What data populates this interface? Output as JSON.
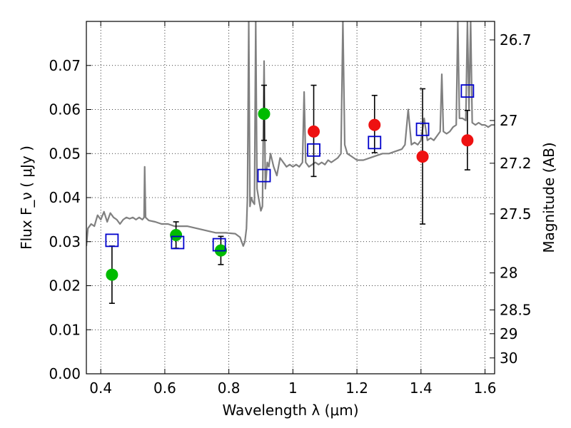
{
  "chart_data": {
    "type": "scatter",
    "xlabel": "Wavelength  λ (μm)",
    "ylabel": "Flux  F_ν  ( μJy )",
    "ylabel_right": "Magnitude (AB)",
    "xlim": [
      0.355,
      1.63
    ],
    "ylim": [
      0.0,
      0.08
    ],
    "grid": true,
    "x_ticks": [
      0.4,
      0.6,
      0.8,
      1.0,
      1.2,
      1.4,
      1.6
    ],
    "x_tick_labels": [
      "0.4",
      "0.6",
      "0.8",
      "1",
      "1.2",
      "1.4",
      "1.6"
    ],
    "y_ticks": [
      0.0,
      0.01,
      0.02,
      0.03,
      0.04,
      0.05,
      0.06,
      0.07
    ],
    "y_tick_labels": [
      "0.00",
      "0.01",
      "0.02",
      "0.03",
      "0.04",
      "0.05",
      "0.06",
      "0.07"
    ],
    "right_ticks": [
      {
        "mag": "26.7",
        "flux": 0.0758
      },
      {
        "mag": "27",
        "flux": 0.0575
      },
      {
        "mag": "27.2",
        "flux": 0.0478
      },
      {
        "mag": "27.5",
        "flux": 0.0363
      },
      {
        "mag": "28",
        "flux": 0.0229
      },
      {
        "mag": "28.5",
        "flux": 0.0145
      },
      {
        "mag": "29",
        "flux": 0.0091
      },
      {
        "mag": "30",
        "flux": 0.0036
      }
    ],
    "colors": {
      "green": "#00bb00",
      "red": "#ee1111",
      "model": "#0000cc",
      "spectrum": "#808080"
    },
    "series": [
      {
        "marker": "circle",
        "color": "green",
        "points": [
          {
            "x": 0.435,
            "y": 0.0225,
            "lo": 0.016,
            "hi": 0.029
          },
          {
            "x": 0.635,
            "y": 0.0315,
            "lo": 0.0285,
            "hi": 0.0345
          },
          {
            "x": 0.775,
            "y": 0.028,
            "lo": 0.0248,
            "hi": 0.0312
          },
          {
            "x": 0.91,
            "y": 0.059,
            "lo": 0.053,
            "hi": 0.0655
          }
        ]
      },
      {
        "marker": "circle",
        "color": "red",
        "points": [
          {
            "x": 1.065,
            "y": 0.055,
            "lo": 0.0448,
            "hi": 0.0655
          },
          {
            "x": 1.255,
            "y": 0.0565,
            "lo": 0.0502,
            "hi": 0.0632
          },
          {
            "x": 1.405,
            "y": 0.0493,
            "lo": 0.034,
            "hi": 0.0647
          },
          {
            "x": 1.545,
            "y": 0.053,
            "lo": 0.0463,
            "hi": 0.0598
          }
        ]
      },
      {
        "marker": "square",
        "color": "model",
        "points": [
          {
            "x": 0.435,
            "y": 0.0303
          },
          {
            "x": 0.64,
            "y": 0.0298
          },
          {
            "x": 0.77,
            "y": 0.0293
          },
          {
            "x": 0.91,
            "y": 0.045
          },
          {
            "x": 1.065,
            "y": 0.0508
          },
          {
            "x": 1.255,
            "y": 0.0525
          },
          {
            "x": 1.405,
            "y": 0.0555
          },
          {
            "x": 1.545,
            "y": 0.0642
          }
        ]
      }
    ],
    "spectrum": [
      [
        0.355,
        0.029
      ],
      [
        0.36,
        0.033
      ],
      [
        0.37,
        0.034
      ],
      [
        0.38,
        0.0335
      ],
      [
        0.39,
        0.036
      ],
      [
        0.4,
        0.035
      ],
      [
        0.41,
        0.0368
      ],
      [
        0.42,
        0.0345
      ],
      [
        0.43,
        0.0365
      ],
      [
        0.44,
        0.0355
      ],
      [
        0.45,
        0.035
      ],
      [
        0.46,
        0.034
      ],
      [
        0.47,
        0.035
      ],
      [
        0.48,
        0.0355
      ],
      [
        0.49,
        0.0352
      ],
      [
        0.5,
        0.0355
      ],
      [
        0.51,
        0.035
      ],
      [
        0.52,
        0.0355
      ],
      [
        0.53,
        0.035
      ],
      [
        0.535,
        0.0355
      ],
      [
        0.537,
        0.047
      ],
      [
        0.54,
        0.0355
      ],
      [
        0.55,
        0.0348
      ],
      [
        0.57,
        0.0345
      ],
      [
        0.59,
        0.034
      ],
      [
        0.61,
        0.034
      ],
      [
        0.63,
        0.0335
      ],
      [
        0.65,
        0.0335
      ],
      [
        0.67,
        0.0335
      ],
      [
        0.7,
        0.033
      ],
      [
        0.73,
        0.0325
      ],
      [
        0.76,
        0.032
      ],
      [
        0.79,
        0.032
      ],
      [
        0.82,
        0.0318
      ],
      [
        0.835,
        0.031
      ],
      [
        0.845,
        0.029
      ],
      [
        0.85,
        0.03
      ],
      [
        0.855,
        0.033
      ],
      [
        0.858,
        0.04
      ],
      [
        0.862,
        0.08
      ],
      [
        0.866,
        0.038
      ],
      [
        0.87,
        0.04
      ],
      [
        0.875,
        0.039
      ],
      [
        0.88,
        0.0385
      ],
      [
        0.884,
        0.08
      ],
      [
        0.888,
        0.042
      ],
      [
        0.895,
        0.039
      ],
      [
        0.9,
        0.037
      ],
      [
        0.905,
        0.038
      ],
      [
        0.91,
        0.071
      ],
      [
        0.914,
        0.042
      ],
      [
        0.92,
        0.048
      ],
      [
        0.925,
        0.047
      ],
      [
        0.93,
        0.05
      ],
      [
        0.94,
        0.047
      ],
      [
        0.95,
        0.045
      ],
      [
        0.96,
        0.049
      ],
      [
        0.97,
        0.048
      ],
      [
        0.98,
        0.047
      ],
      [
        0.99,
        0.0475
      ],
      [
        1.0,
        0.047
      ],
      [
        1.01,
        0.0475
      ],
      [
        1.02,
        0.047
      ],
      [
        1.03,
        0.048
      ],
      [
        1.035,
        0.064
      ],
      [
        1.04,
        0.048
      ],
      [
        1.05,
        0.047
      ],
      [
        1.06,
        0.0475
      ],
      [
        1.07,
        0.048
      ],
      [
        1.08,
        0.0475
      ],
      [
        1.09,
        0.048
      ],
      [
        1.1,
        0.0475
      ],
      [
        1.11,
        0.0485
      ],
      [
        1.12,
        0.048
      ],
      [
        1.13,
        0.0485
      ],
      [
        1.14,
        0.049
      ],
      [
        1.15,
        0.05
      ],
      [
        1.156,
        0.08
      ],
      [
        1.162,
        0.052
      ],
      [
        1.17,
        0.05
      ],
      [
        1.18,
        0.0495
      ],
      [
        1.19,
        0.049
      ],
      [
        1.2,
        0.0485
      ],
      [
        1.22,
        0.0485
      ],
      [
        1.24,
        0.049
      ],
      [
        1.26,
        0.0495
      ],
      [
        1.28,
        0.05
      ],
      [
        1.3,
        0.05
      ],
      [
        1.32,
        0.0505
      ],
      [
        1.34,
        0.051
      ],
      [
        1.35,
        0.052
      ],
      [
        1.36,
        0.06
      ],
      [
        1.37,
        0.052
      ],
      [
        1.38,
        0.0525
      ],
      [
        1.39,
        0.052
      ],
      [
        1.4,
        0.053
      ],
      [
        1.41,
        0.058
      ],
      [
        1.42,
        0.053
      ],
      [
        1.43,
        0.0535
      ],
      [
        1.44,
        0.053
      ],
      [
        1.45,
        0.054
      ],
      [
        1.46,
        0.055
      ],
      [
        1.465,
        0.068
      ],
      [
        1.47,
        0.055
      ],
      [
        1.48,
        0.0545
      ],
      [
        1.49,
        0.055
      ],
      [
        1.5,
        0.056
      ],
      [
        1.51,
        0.0565
      ],
      [
        1.515,
        0.08
      ],
      [
        1.52,
        0.058
      ],
      [
        1.53,
        0.058
      ],
      [
        1.54,
        0.0575
      ],
      [
        1.545,
        0.08
      ],
      [
        1.55,
        0.06
      ],
      [
        1.555,
        0.08
      ],
      [
        1.56,
        0.057
      ],
      [
        1.57,
        0.0565
      ],
      [
        1.58,
        0.057
      ],
      [
        1.59,
        0.0565
      ],
      [
        1.6,
        0.0565
      ],
      [
        1.61,
        0.056
      ],
      [
        1.62,
        0.0565
      ],
      [
        1.63,
        0.0565
      ]
    ]
  }
}
